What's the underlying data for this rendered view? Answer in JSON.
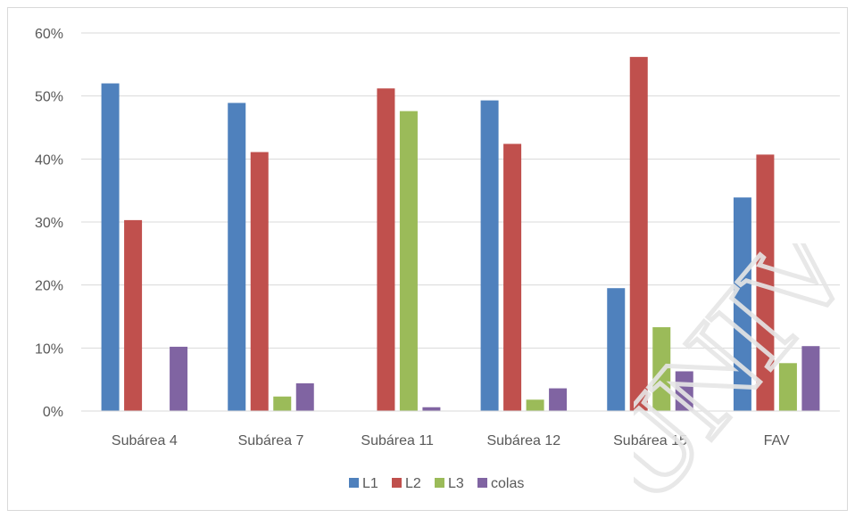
{
  "chart_data": {
    "type": "bar",
    "categories": [
      "Subárea 4",
      "Subárea 7",
      "Subárea 11",
      "Subárea 12",
      "Subárea 15",
      "FAV"
    ],
    "series": [
      {
        "name": "L1",
        "color": "#4f81bd",
        "values": [
          52.0,
          48.9,
          0.0,
          49.3,
          19.5,
          33.9
        ]
      },
      {
        "name": "L2",
        "color": "#c0504d",
        "values": [
          30.3,
          41.1,
          51.2,
          42.4,
          56.2,
          40.7
        ]
      },
      {
        "name": "L3",
        "color": "#9bbb59",
        "values": [
          0.0,
          2.3,
          47.6,
          1.8,
          13.3,
          7.6
        ]
      },
      {
        "name": "colas",
        "color": "#8064a2",
        "values": [
          10.2,
          4.4,
          0.6,
          3.6,
          6.3,
          10.3
        ]
      }
    ],
    "y_ticks": [
      "0%",
      "10%",
      "20%",
      "30%",
      "40%",
      "50%",
      "60%"
    ],
    "ylim": [
      0,
      60
    ],
    "y_unit": "%",
    "grid": true,
    "legend_position": "bottom",
    "title": "",
    "xlabel": "",
    "ylabel": ""
  },
  "watermark": {
    "text": "UNIV"
  }
}
